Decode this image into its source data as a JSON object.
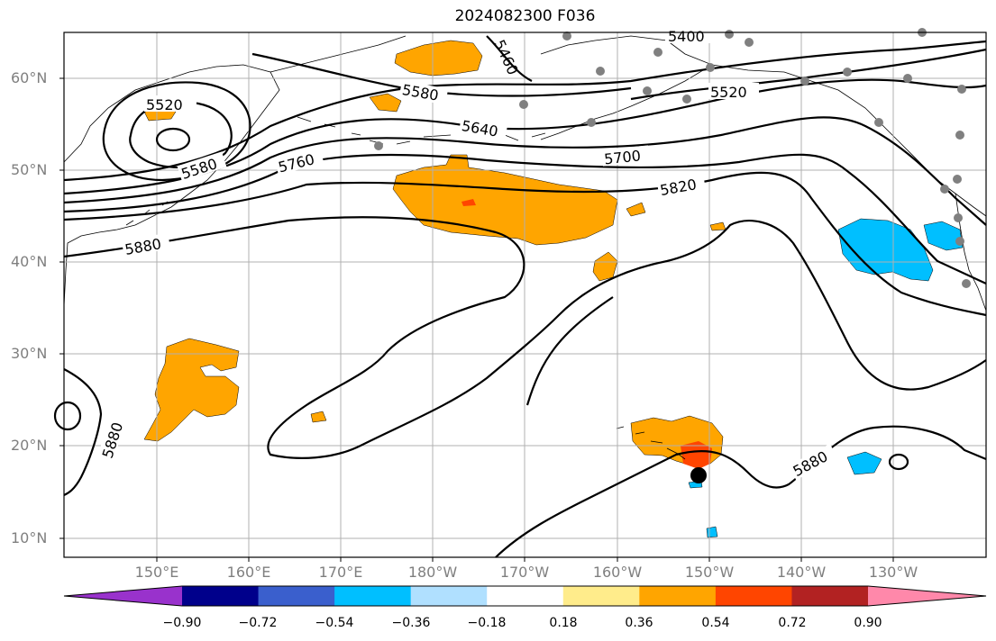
{
  "title": "2024082300 F036",
  "lat_labels": [
    "60°N",
    "50°N",
    "40°N",
    "30°N",
    "20°N",
    "10°N"
  ],
  "lon_labels": [
    "150°E",
    "160°E",
    "170°E",
    "180°W",
    "170°W",
    "160°W",
    "150°W",
    "140°W",
    "130°W"
  ],
  "contour_labels": {
    "c5400": "5400",
    "c5460": "5460",
    "c5520a": "5520",
    "c5520b": "5520",
    "c5580a": "5580",
    "c5580b": "5580",
    "c5640": "5640",
    "c5700": "5700",
    "c5760": "5760",
    "c5820": "5820",
    "c5880a": "5880",
    "c5880b": "5880",
    "c5880c": "5880"
  },
  "colorbar": {
    "ticks": [
      "−0.90",
      "−0.72",
      "−0.54",
      "−0.36",
      "−0.18",
      "0.18",
      "0.36",
      "0.54",
      "0.72",
      "0.90"
    ],
    "colors": [
      "#9932cc",
      "#00008b",
      "#3a5fcd",
      "#00bfff",
      "#b0e0ff",
      "#ffffff",
      "#ffec8b",
      "#ffa500",
      "#ff4500",
      "#b22222",
      "#ff88aa"
    ]
  }
}
